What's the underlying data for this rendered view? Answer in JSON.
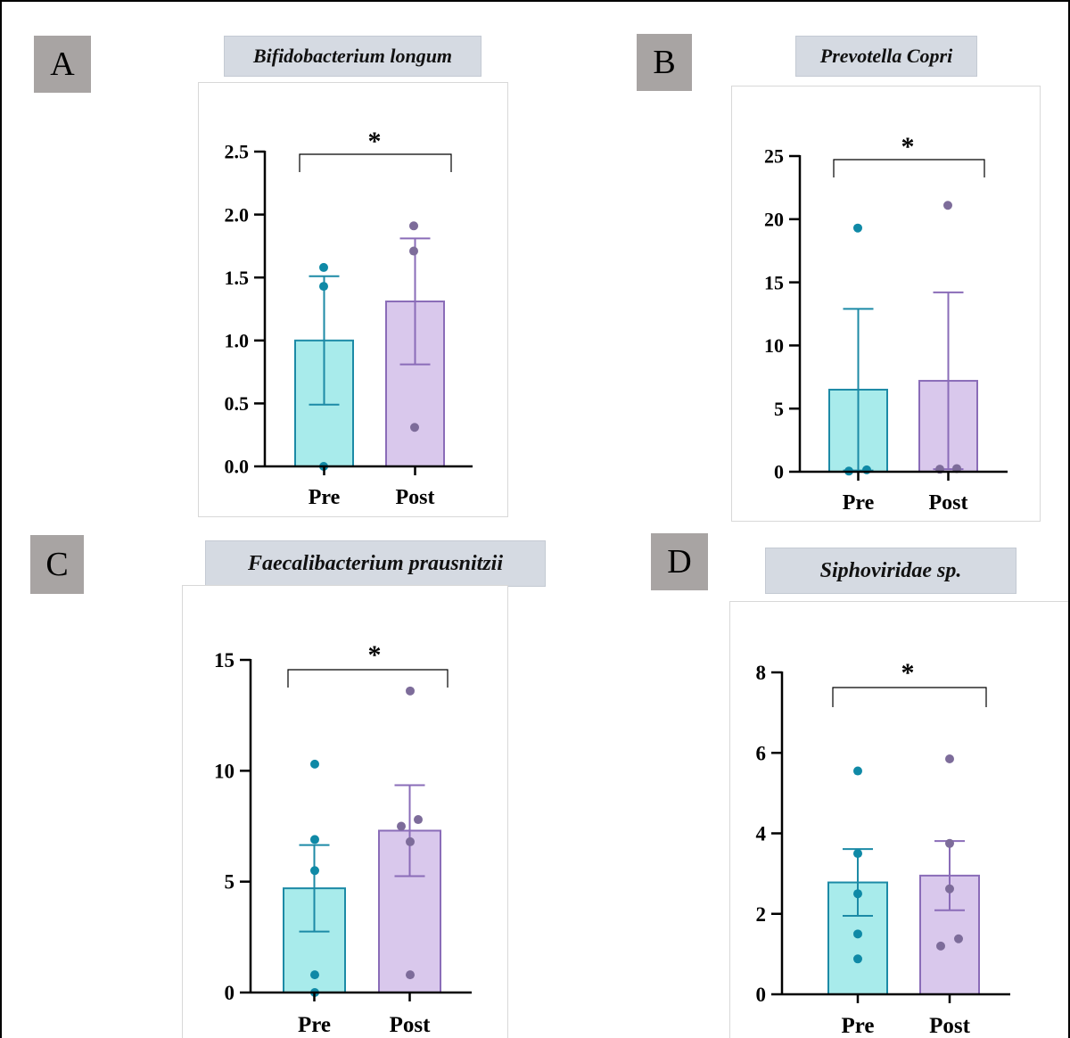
{
  "colors": {
    "pre_fill": "#a8ebeb",
    "pre_stroke": "#1c8aa6",
    "pre_dot": "#0f89a6",
    "post_fill": "#d9c8ec",
    "post_stroke": "#8a6cb8",
    "post_dot": "#7d6c9a"
  },
  "significance_mark": "*",
  "panels": [
    {
      "letter": "A",
      "title": "Bifidobacterium longum"
    },
    {
      "letter": "B",
      "title": "Prevotella Copri"
    },
    {
      "letter": "C",
      "title": "Faecalibacterium prausnitzii"
    },
    {
      "letter": "D",
      "title": "Siphoviridae sp."
    }
  ],
  "chart_data": [
    {
      "type": "bar",
      "title": "Bifidobacterium longum",
      "categories": [
        "Pre",
        "Post"
      ],
      "ylim": [
        0,
        2.5
      ],
      "yticks": [
        "0.0",
        "0.5",
        "1.0",
        "1.5",
        "2.0",
        "2.5"
      ],
      "means": [
        1.0,
        1.31
      ],
      "errors": [
        0.51,
        0.5
      ],
      "points": [
        [
          1.58,
          1.43,
          0.0
        ],
        [
          1.91,
          1.71,
          0.31
        ]
      ],
      "annotation": "*"
    },
    {
      "type": "bar",
      "title": "Prevotella Copri",
      "categories": [
        "Pre",
        "Post"
      ],
      "ylim": [
        0,
        25
      ],
      "yticks": [
        "0",
        "5",
        "10",
        "15",
        "20",
        "25"
      ],
      "means": [
        6.5,
        7.2
      ],
      "errors": [
        6.4,
        7.0
      ],
      "points": [
        [
          19.3,
          0.05,
          0.15
        ],
        [
          21.1,
          0.2,
          0.25
        ]
      ],
      "annotation": "*"
    },
    {
      "type": "bar",
      "title": "Faecalibacterium prausnitzii",
      "categories": [
        "Pre",
        "Post"
      ],
      "ylim": [
        0,
        15
      ],
      "yticks": [
        "0",
        "5",
        "10",
        "15"
      ],
      "means": [
        4.7,
        7.3
      ],
      "errors": [
        1.95,
        2.05
      ],
      "points": [
        [
          10.3,
          6.9,
          5.5,
          0.8,
          0.0
        ],
        [
          13.6,
          7.5,
          7.8,
          6.8,
          0.8
        ]
      ],
      "annotation": "*"
    },
    {
      "type": "bar",
      "title": "Siphoviridae sp.",
      "categories": [
        "Pre",
        "Post"
      ],
      "ylim": [
        0,
        8
      ],
      "yticks": [
        "0",
        "2",
        "4",
        "6",
        "8"
      ],
      "means": [
        2.78,
        2.95
      ],
      "errors": [
        0.83,
        0.86
      ],
      "points": [
        [
          5.55,
          3.5,
          2.5,
          1.5,
          0.88
        ],
        [
          5.85,
          3.75,
          2.62,
          1.2,
          1.38
        ]
      ],
      "annotation": "*"
    }
  ]
}
